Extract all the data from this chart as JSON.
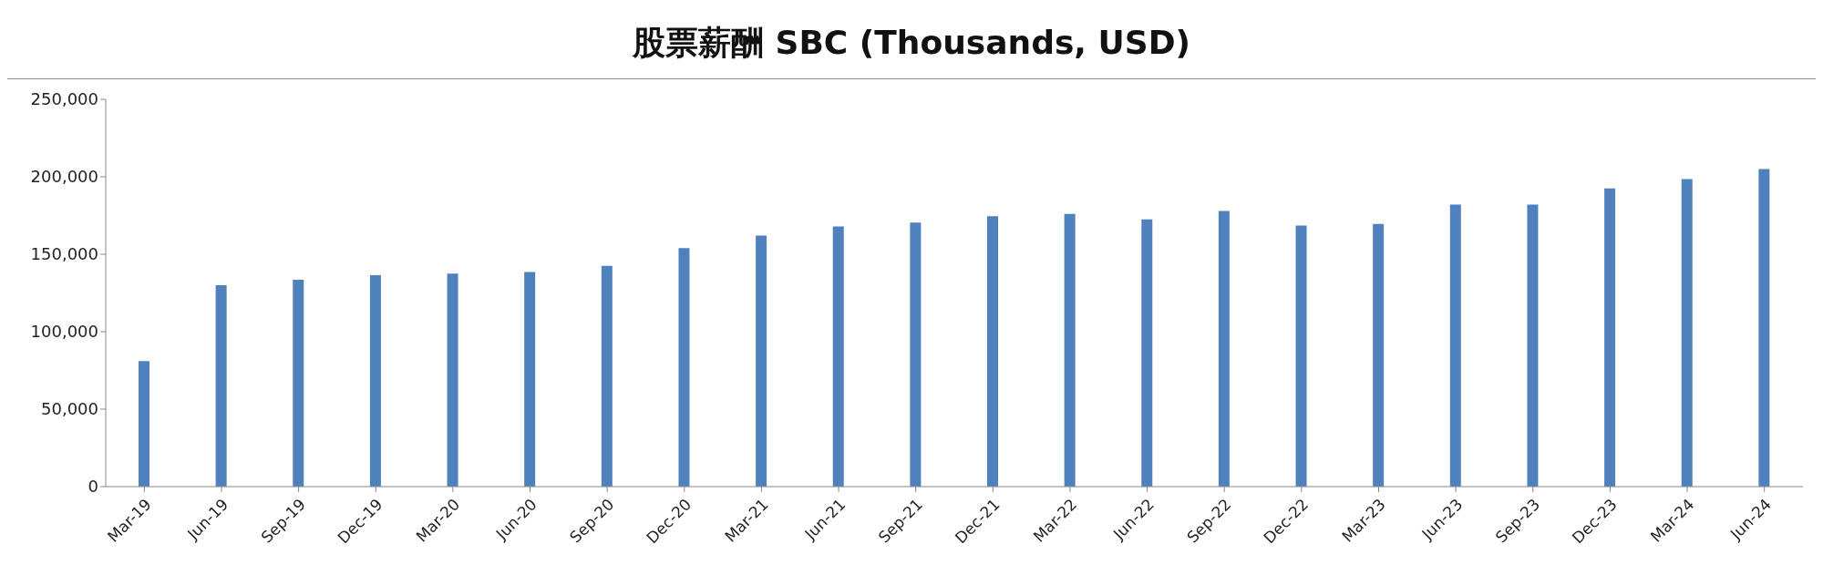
{
  "chart_data": {
    "type": "bar",
    "title": "股票薪酬 SBC (Thousands, USD)",
    "categories": [
      "Mar-19",
      "Jun-19",
      "Sep-19",
      "Dec-19",
      "Mar-20",
      "Jun-20",
      "Sep-20",
      "Dec-20",
      "Mar-21",
      "Jun-21",
      "Sep-21",
      "Dec-21",
      "Mar-22",
      "Jun-22",
      "Sep-22",
      "Dec-22",
      "Mar-23",
      "Jun-23",
      "Sep-23",
      "Dec-23",
      "Mar-24",
      "Jun-24"
    ],
    "values": [
      81000,
      130000,
      133500,
      136500,
      137500,
      138500,
      142500,
      154000,
      162000,
      168000,
      170500,
      174500,
      176000,
      172500,
      178000,
      168500,
      169500,
      182000,
      182000,
      192500,
      198500,
      205000
    ],
    "color": "#4f81bd",
    "ylim": [
      0,
      250000
    ],
    "yticks": [
      {
        "value": 0,
        "label": "0"
      },
      {
        "value": 50000,
        "label": "50,000"
      },
      {
        "value": 100000,
        "label": "100,000"
      },
      {
        "value": 150000,
        "label": "150,000"
      },
      {
        "value": 200000,
        "label": "200,000"
      },
      {
        "value": 250000,
        "label": "250,000"
      }
    ],
    "grid": false
  }
}
